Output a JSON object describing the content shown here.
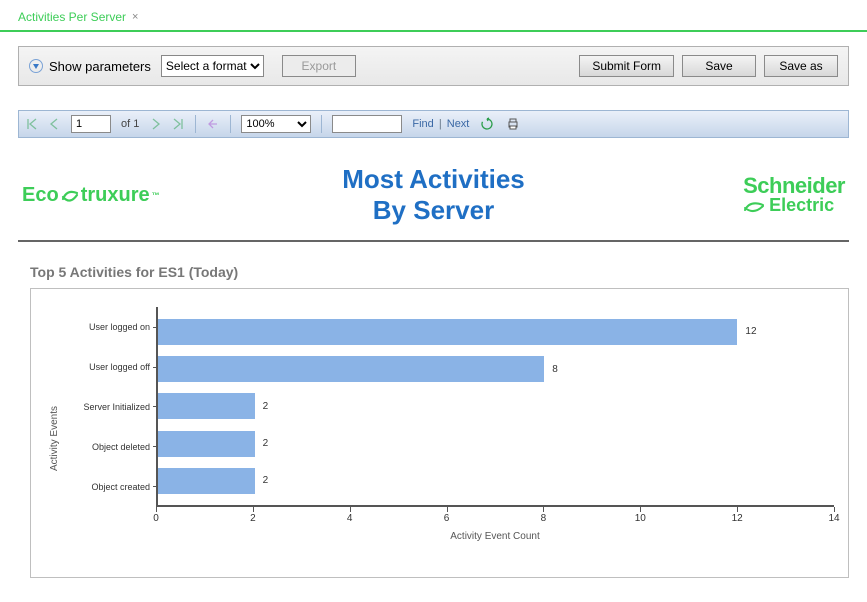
{
  "colors": {
    "accent_green": "#3dcd58",
    "title_blue": "#1f6fc4",
    "bar_fill": "#8ab3e6",
    "toolbar_gradient_top": "#eaf0f9",
    "toolbar_gradient_bottom": "#c6d6ea",
    "hr": "#656565",
    "frame_border": "#bfbfbf"
  },
  "tab": {
    "label": "Activities Per Server",
    "close": "×"
  },
  "parambar": {
    "show_label": "Show parameters",
    "format_placeholder": "Select a format",
    "export_label": "Export",
    "submit_label": "Submit Form",
    "save_label": "Save",
    "saveas_label": "Save as"
  },
  "viewer": {
    "page_value": "1",
    "of_label": "of 1",
    "zoom_value": "100%",
    "find_value": "",
    "find_label": "Find",
    "next_label": "Next"
  },
  "header": {
    "logo_left_text": "EcoStruxure",
    "trademark": "™",
    "title_line1": "Most Activities",
    "title_line2": "By Server",
    "schneider_l1": "Schneider",
    "schneider_l2": "Electric"
  },
  "chart": {
    "subtitle": "Top 5 Activities for ES1 (Today)",
    "type": "horizontal_bar",
    "yaxis_title": "Activity Events",
    "xaxis_title": "Activity Event Count",
    "xlim": [
      0,
      14
    ],
    "xtick_step": 2,
    "categories": [
      "User logged on",
      "User logged off",
      "Server Initialized",
      "Object deleted",
      "Object created"
    ],
    "values": [
      12,
      8,
      2,
      2,
      2
    ],
    "bar_color": "#8ab3e6",
    "label_fontsize": 9,
    "axis_fontsize": 10,
    "axis_color": "#555555"
  }
}
